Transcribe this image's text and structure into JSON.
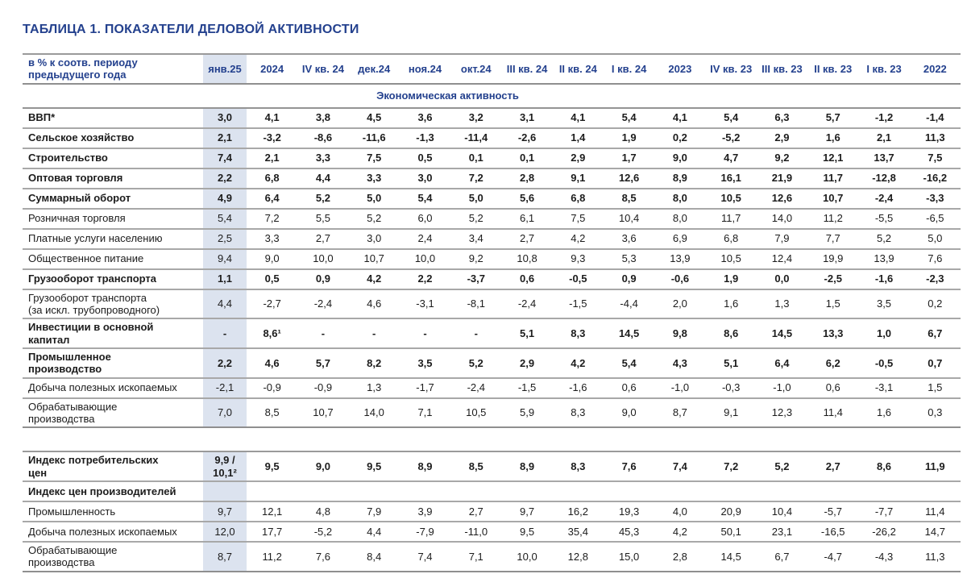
{
  "title": "ТАБЛИЦА 1. ПОКАЗАТЕЛИ ДЕЛОВОЙ АКТИВНОСТИ",
  "colors": {
    "accent_navy": "#24418e",
    "column_highlight": "#dce3ef"
  },
  "table": {
    "unit_label": "в % к соотв. периоду предыдущего года",
    "columns": [
      "янв.25",
      "2024",
      "IV кв. 24",
      "дек.24",
      "ноя.24",
      "окт.24",
      "III кв. 24",
      "II кв. 24",
      "I кв. 24",
      "2023",
      "IV кв. 23",
      "III кв. 23",
      "II кв. 23",
      "I кв. 23",
      "2022"
    ],
    "section_title": "Экономическая активность",
    "rows": [
      {
        "label": "ВВП*",
        "bold": true,
        "values": [
          "3,0",
          "4,1",
          "3,8",
          "4,5",
          "3,6",
          "3,2",
          "3,1",
          "4,1",
          "5,4",
          "4,1",
          "5,4",
          "6,3",
          "5,7",
          "-1,2",
          "-1,4"
        ]
      },
      {
        "label": "Сельское хозяйство",
        "bold": true,
        "values": [
          "2,1",
          "-3,2",
          "-8,6",
          "-11,6",
          "-1,3",
          "-11,4",
          "-2,6",
          "1,4",
          "1,9",
          "0,2",
          "-5,2",
          "2,9",
          "1,6",
          "2,1",
          "11,3"
        ]
      },
      {
        "label": "Строительство",
        "bold": true,
        "values": [
          "7,4",
          "2,1",
          "3,3",
          "7,5",
          "0,5",
          "0,1",
          "0,1",
          "2,9",
          "1,7",
          "9,0",
          "4,7",
          "9,2",
          "12,1",
          "13,7",
          "7,5"
        ]
      },
      {
        "label": "Оптовая торговля",
        "bold": true,
        "values": [
          "2,2",
          "6,8",
          "4,4",
          "3,3",
          "3,0",
          "7,2",
          "2,8",
          "9,1",
          "12,6",
          "8,9",
          "16,1",
          "21,9",
          "11,7",
          "-12,8",
          "-16,2"
        ]
      },
      {
        "label": "Суммарный оборот",
        "bold": true,
        "values": [
          "4,9",
          "6,4",
          "5,2",
          "5,0",
          "5,4",
          "5,0",
          "5,6",
          "6,8",
          "8,5",
          "8,0",
          "10,5",
          "12,6",
          "10,7",
          "-2,4",
          "-3,3"
        ]
      },
      {
        "label": "Розничная торговля",
        "bold": false,
        "values": [
          "5,4",
          "7,2",
          "5,5",
          "5,2",
          "6,0",
          "5,2",
          "6,1",
          "7,5",
          "10,4",
          "8,0",
          "11,7",
          "14,0",
          "11,2",
          "-5,5",
          "-6,5"
        ]
      },
      {
        "label": "Платные услуги населению",
        "bold": false,
        "values": [
          "2,5",
          "3,3",
          "2,7",
          "3,0",
          "2,4",
          "3,4",
          "2,7",
          "4,2",
          "3,6",
          "6,9",
          "6,8",
          "7,9",
          "7,7",
          "5,2",
          "5,0"
        ]
      },
      {
        "label": "Общественное питание",
        "bold": false,
        "values": [
          "9,4",
          "9,0",
          "10,0",
          "10,7",
          "10,0",
          "9,2",
          "10,8",
          "9,3",
          "5,3",
          "13,9",
          "10,5",
          "12,4",
          "19,9",
          "13,9",
          "7,6"
        ]
      },
      {
        "label": "Грузооборот транспорта",
        "bold": true,
        "values": [
          "1,1",
          "0,5",
          "0,9",
          "4,2",
          "2,2",
          "-3,7",
          "0,6",
          "-0,5",
          "0,9",
          "-0,6",
          "1,9",
          "0,0",
          "-2,5",
          "-1,6",
          "-2,3"
        ]
      },
      {
        "label": "Грузооборот транспорта (за искл. трубопроводного)",
        "bold": false,
        "values": [
          "4,4",
          "-2,7",
          "-2,4",
          "4,6",
          "-3,1",
          "-8,1",
          "-2,4",
          "-1,5",
          "-4,4",
          "2,0",
          "1,6",
          "1,3",
          "1,5",
          "3,5",
          "0,2"
        ]
      },
      {
        "label": "Инвестиции в основной капитал",
        "bold": true,
        "values": [
          "-",
          "8,6¹",
          "-",
          "-",
          "-",
          "-",
          "5,1",
          "8,3",
          "14,5",
          "9,8",
          "8,6",
          "14,5",
          "13,3",
          "1,0",
          "6,7"
        ]
      },
      {
        "label": "Промышленное производство",
        "bold": true,
        "values": [
          "2,2",
          "4,6",
          "5,7",
          "8,2",
          "3,5",
          "5,2",
          "2,9",
          "4,2",
          "5,4",
          "4,3",
          "5,1",
          "6,4",
          "6,2",
          "-0,5",
          "0,7"
        ]
      },
      {
        "label": "Добыча полезных ископаемых",
        "bold": false,
        "values": [
          "-2,1",
          "-0,9",
          "-0,9",
          "1,3",
          "-1,7",
          "-2,4",
          "-1,5",
          "-1,6",
          "0,6",
          "-1,0",
          "-0,3",
          "-1,0",
          "0,6",
          "-3,1",
          "1,5"
        ]
      },
      {
        "label": "Обрабатывающие производства",
        "bold": false,
        "values": [
          "7,0",
          "8,5",
          "10,7",
          "14,0",
          "7,1",
          "10,5",
          "5,9",
          "8,3",
          "9,0",
          "8,7",
          "9,1",
          "12,3",
          "11,4",
          "1,6",
          "0,3"
        ]
      }
    ],
    "rows2": [
      {
        "label": "Индекс потребительских цен",
        "bold": true,
        "values": [
          "9,9 / 10,1²",
          "9,5",
          "9,0",
          "9,5",
          "8,9",
          "8,5",
          "8,9",
          "8,3",
          "7,6",
          "7,4",
          "7,2",
          "5,2",
          "2,7",
          "8,6",
          "11,9"
        ]
      },
      {
        "label": "Индекс цен производителей",
        "bold": true,
        "values": [
          "",
          "",
          "",
          "",
          "",
          "",
          "",
          "",
          "",
          "",
          "",
          "",
          "",
          "",
          ""
        ]
      },
      {
        "label": "Промышленность",
        "bold": false,
        "values": [
          "9,7",
          "12,1",
          "4,8",
          "7,9",
          "3,9",
          "2,7",
          "9,7",
          "16,2",
          "19,3",
          "4,0",
          "20,9",
          "10,4",
          "-5,7",
          "-7,7",
          "11,4"
        ]
      },
      {
        "label": "Добыча полезных ископаемых",
        "bold": false,
        "values": [
          "12,0",
          "17,7",
          "-5,2",
          "4,4",
          "-7,9",
          "-11,0",
          "9,5",
          "35,4",
          "45,3",
          "4,2",
          "50,1",
          "23,1",
          "-16,5",
          "-26,2",
          "14,7"
        ]
      },
      {
        "label": "Обрабатывающие производства",
        "bold": false,
        "values": [
          "8,7",
          "11,2",
          "7,6",
          "8,4",
          "7,4",
          "7,1",
          "10,0",
          "12,8",
          "15,0",
          "2,8",
          "14,5",
          "6,7",
          "-4,7",
          "-4,3",
          "11,3"
        ]
      }
    ]
  }
}
